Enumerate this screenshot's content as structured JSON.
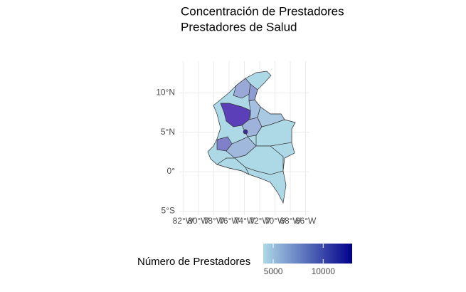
{
  "chart_data": {
    "type": "choropleth",
    "title": "Concentración de Prestadores",
    "subtitle": "Prestadores de Salud",
    "xlim": [
      -82.5,
      -65.5
    ],
    "ylim": [
      -5.5,
      14
    ],
    "xticks": [
      {
        "value": -82,
        "label": "82°W"
      },
      {
        "value": -80,
        "label": "80°W"
      },
      {
        "value": -78,
        "label": "78°W"
      },
      {
        "value": -76,
        "label": "76°W"
      },
      {
        "value": -74,
        "label": "74°W"
      },
      {
        "value": -72,
        "label": "72°W"
      },
      {
        "value": -70,
        "label": "70°W"
      },
      {
        "value": -68,
        "label": "68°W"
      },
      {
        "value": -66,
        "label": "66°W"
      }
    ],
    "yticks": [
      {
        "value": 10,
        "label": "10°N"
      },
      {
        "value": 5,
        "label": "5°N"
      },
      {
        "value": 0,
        "label": "0°"
      },
      {
        "value": -5,
        "label": "5°S"
      }
    ],
    "grid": true,
    "legend_title": "Número de Prestadores",
    "legend_lim": [
      4000,
      12900
    ],
    "legend_ticks": [
      5000,
      10000
    ],
    "low_color": "#add8e6",
    "high_color": "#00008b"
  }
}
